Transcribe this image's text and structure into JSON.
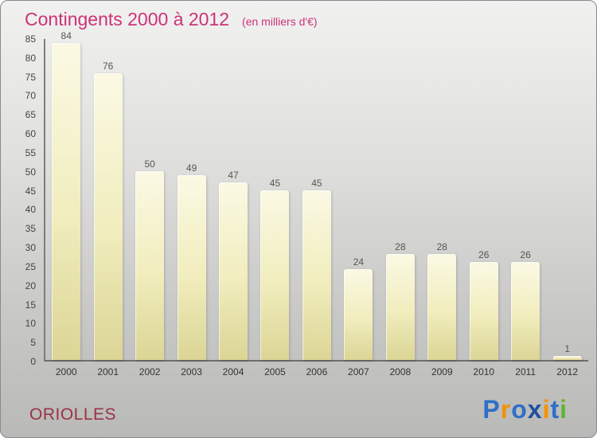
{
  "chart_data": {
    "type": "bar",
    "title": "Contingents 2000 à 2012",
    "subtitle": "(en milliers d'€)",
    "categories": [
      "2000",
      "2001",
      "2002",
      "2003",
      "2004",
      "2005",
      "2006",
      "2007",
      "2008",
      "2009",
      "2010",
      "2011",
      "2012"
    ],
    "values": [
      84,
      76,
      50,
      49,
      47,
      45,
      45,
      24,
      28,
      28,
      26,
      26,
      1
    ],
    "xlabel": "",
    "ylabel": "",
    "ylim": [
      0,
      85
    ],
    "ytick_step": 5,
    "grid": false,
    "legend": false,
    "value_labels_shown": true
  },
  "footer": {
    "place": "ORIOLLES",
    "logo_letters": [
      {
        "ch": "P",
        "color": "#2e6fc9"
      },
      {
        "ch": "r",
        "color": "#f39200"
      },
      {
        "ch": "o",
        "color": "#2e6fc9"
      },
      {
        "ch": "x",
        "color": "#1f4fa0"
      },
      {
        "ch": "i",
        "color": "#f39200"
      },
      {
        "ch": "t",
        "color": "#2e6fc9"
      },
      {
        "ch": "i",
        "color": "#5cb531"
      }
    ]
  },
  "colors": {
    "title": "#cc3377",
    "place": "#993344",
    "bar_top": "#fbf9e4",
    "bar_bottom": "#dbd595",
    "value_label": "#555555",
    "axis": "#6f6f6f"
  }
}
